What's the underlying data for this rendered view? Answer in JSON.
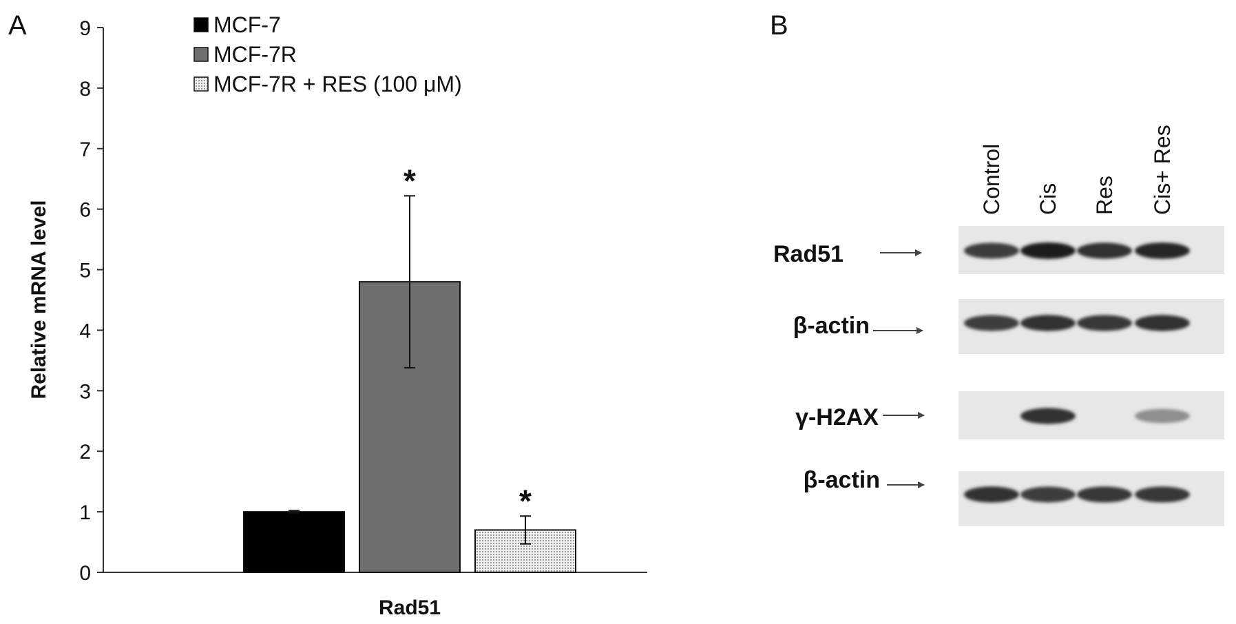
{
  "figure": {
    "panel_a_label": "A",
    "panel_b_label": "B"
  },
  "chart_data": {
    "type": "bar",
    "title": "",
    "ylabel": "Relative mRNA level",
    "xlabel": "",
    "categories": [
      "Rad51"
    ],
    "ylim": [
      0,
      9
    ],
    "yticks": [
      0,
      1,
      2,
      3,
      4,
      5,
      6,
      7,
      8,
      9
    ],
    "grid": false,
    "legend_position": "top-left",
    "series": [
      {
        "name": "MCF-7",
        "values": [
          1.0
        ],
        "error": [
          0.02
        ],
        "color": "#000000",
        "fill": "solid",
        "significance": ""
      },
      {
        "name": "MCF-7R",
        "values": [
          4.8
        ],
        "error": [
          1.42
        ],
        "color": "#6e6e6e",
        "fill": "solid",
        "significance": "*"
      },
      {
        "name": "MCF-7R + RES (100 μM)",
        "values": [
          0.7
        ],
        "error": [
          0.23
        ],
        "color": "#e4e4e4",
        "fill": "dotted",
        "significance": "*"
      }
    ]
  },
  "blot": {
    "lanes": [
      "Control",
      "Cis",
      "Res",
      "Cis+ Res"
    ],
    "rows": [
      {
        "label": "Rad51",
        "intensity": [
          0.85,
          1.0,
          0.9,
          0.95
        ]
      },
      {
        "label": "β-actin",
        "intensity": [
          0.85,
          0.9,
          0.88,
          0.9
        ]
      },
      {
        "label": "γ-H2AX",
        "intensity": [
          0.0,
          0.9,
          0.0,
          0.45
        ]
      },
      {
        "label": "β-actin",
        "intensity": [
          0.9,
          0.85,
          0.88,
          0.88
        ]
      }
    ]
  }
}
